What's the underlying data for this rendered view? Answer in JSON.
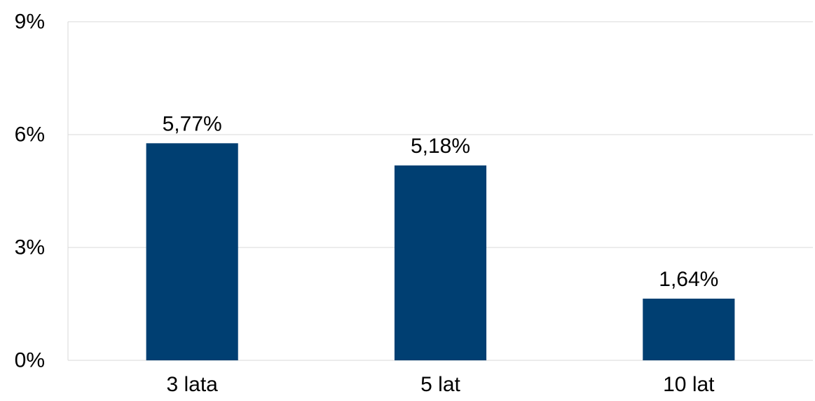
{
  "chart_data": {
    "type": "bar",
    "title": "",
    "xlabel": "",
    "ylabel": "",
    "categories": [
      "3 lata",
      "5 lat",
      "10 lat"
    ],
    "values": [
      5.77,
      5.18,
      1.64
    ],
    "data_labels": [
      "5,77%",
      "5,18%",
      "1,64%"
    ],
    "ylim": [
      0,
      9
    ],
    "yticks": [
      0,
      3,
      6,
      9
    ],
    "ytick_labels": [
      "0%",
      "3%",
      "6%",
      "9%"
    ],
    "grid": true,
    "legend": "none",
    "bar_color": "#003f72",
    "grid_color": "#d9d9d9"
  }
}
